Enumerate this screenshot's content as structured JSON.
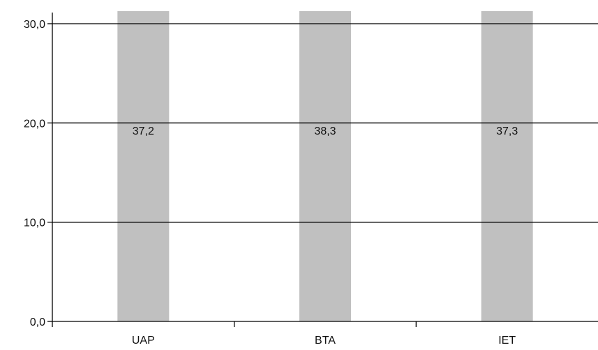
{
  "chart_data": {
    "type": "bar",
    "categories": [
      "UAP",
      "BTA",
      "IET"
    ],
    "values": [
      37.2,
      38.3,
      37.3
    ],
    "data_labels": [
      "37,2",
      "38,3",
      "37,3"
    ],
    "yticks": [
      0,
      10,
      20,
      30
    ],
    "ytick_labels": [
      "0,0",
      "10,0",
      "20,0",
      "30,0"
    ],
    "ylim": [
      0,
      30
    ],
    "grid": true,
    "bar_color": "#c0c0c0",
    "gridline_color": "#000000"
  }
}
